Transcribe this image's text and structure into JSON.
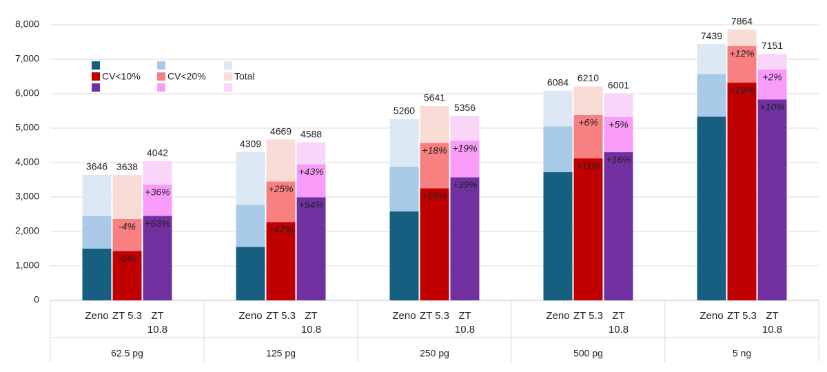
{
  "chart_data": {
    "type": "grouped_stacked_bar",
    "groups": [
      "62.5 pg",
      "125 pg",
      "250 pg",
      "500 pg",
      "5 ng"
    ],
    "segments": [
      "CV<10%",
      "CV<20%",
      "Total"
    ],
    "instruments": [
      {
        "name": "Zeno",
        "colors": [
          "#175f80",
          "#a9c9e9",
          "#dde8f5"
        ]
      },
      {
        "name": "ZT 5.3",
        "colors": [
          "#c00000",
          "#f88080",
          "#fadcd6"
        ]
      },
      {
        "name": "ZT 10.8",
        "colors": [
          "#7030a0",
          "#f99cf9",
          "#fad5fa"
        ]
      }
    ],
    "values": [
      [
        [
          1500,
          950,
          1196
        ],
        [
          1430,
          930,
          1278
        ],
        [
          2450,
          910,
          682
        ]
      ],
      [
        [
          1550,
          1220,
          1539
        ],
        [
          2270,
          1180,
          1219
        ],
        [
          2990,
          960,
          638
        ]
      ],
      [
        [
          2580,
          1300,
          1380
        ],
        [
          3250,
          1320,
          1071
        ],
        [
          3570,
          1060,
          726
        ]
      ],
      [
        [
          3720,
          1330,
          1034
        ],
        [
          4120,
          1260,
          830
        ],
        [
          4300,
          1020,
          681
        ]
      ],
      [
        [
          5330,
          1240,
          869
        ],
        [
          6320,
          1060,
          484
        ],
        [
          5830,
          870,
          451
        ]
      ]
    ],
    "totals": [
      [
        3646,
        3638,
        4042
      ],
      [
        4309,
        4669,
        4588
      ],
      [
        5260,
        5641,
        5356
      ],
      [
        6084,
        6210,
        6001
      ],
      [
        7439,
        7864,
        7151
      ]
    ],
    "change_labels": [
      [
        null,
        [
          "-5%",
          "-4%"
        ],
        [
          "+63%",
          "+36%"
        ]
      ],
      [
        null,
        [
          "+47%",
          "+25%"
        ],
        [
          "+94%",
          "+43%"
        ]
      ],
      [
        null,
        [
          "+26%",
          "+18%"
        ],
        [
          "+39%",
          "+19%"
        ]
      ],
      [
        null,
        [
          "+11%",
          "+6%"
        ],
        [
          "+16%",
          "+5%"
        ]
      ],
      [
        null,
        [
          "+19%",
          "+12%"
        ],
        [
          "+10%",
          "+2%"
        ]
      ]
    ],
    "ylim": [
      0,
      8000
    ],
    "yticks": [
      0,
      {
        "value": 1000,
        "label": "1,000"
      },
      {
        "value": 2000,
        "label": "2,000"
      },
      {
        "value": 3000,
        "label": "3,000"
      },
      {
        "value": 4000,
        "label": "4,000"
      },
      {
        "value": 5000,
        "label": "5,000"
      },
      {
        "value": 6000,
        "label": "6,000"
      },
      {
        "value": 7000,
        "label": "7,000"
      },
      {
        "value": 8000,
        "label": "8,000"
      }
    ],
    "grid": true
  }
}
